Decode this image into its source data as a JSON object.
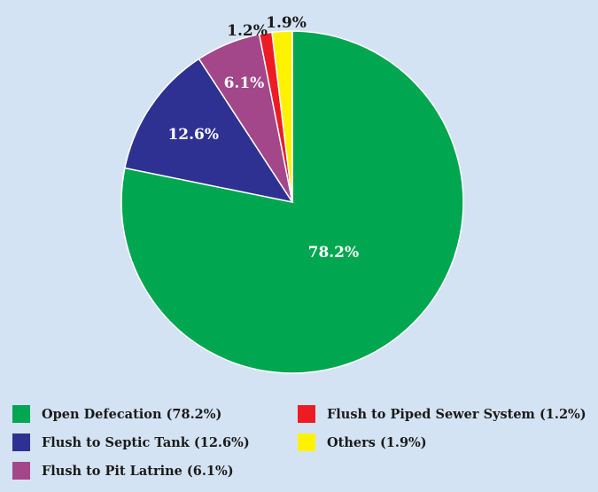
{
  "chart_data": {
    "type": "pie",
    "title": "",
    "slices": [
      {
        "label": "Open Defecation (78.2%)",
        "value": 78.2,
        "display": "78.2%",
        "color": "#00a650"
      },
      {
        "label": "Flush to Septic Tank (12.6%)",
        "value": 12.6,
        "display": "12.6%",
        "color": "#2e3192"
      },
      {
        "label": "Flush to Pit Latrine (6.1%)",
        "value": 6.1,
        "display": "6.1%",
        "color": "#a3478a"
      },
      {
        "label": "Flush to Piped Sewer System (1.2%)",
        "value": 1.2,
        "display": "1.2%",
        "color": "#ed1c24"
      },
      {
        "label": "Others (1.9%)",
        "value": 1.9,
        "display": "1.9%",
        "color": "#fff200"
      }
    ],
    "legend_placement": "bottom"
  }
}
